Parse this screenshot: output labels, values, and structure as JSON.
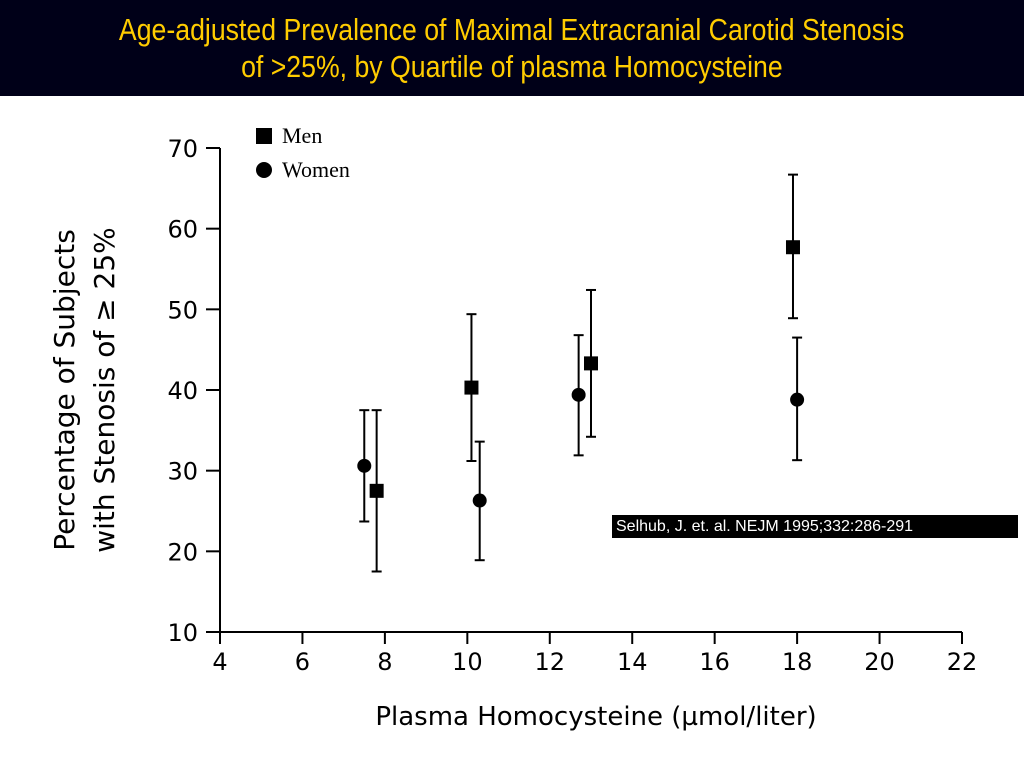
{
  "title": {
    "line1": "Age-adjusted Prevalence of Maximal Extracranial Carotid Stenosis",
    "line2": "of >25%, by Quartile of plasma Homocysteine"
  },
  "citation": "Selhub, J. et. al. NEJM 1995;332:286-291",
  "colors": {
    "title_bg": "#000018",
    "title_text": "#ffcc00",
    "ink": "#000000"
  },
  "chart_data": {
    "type": "scatter",
    "xlabel": "Plasma Homocysteine (µmol/liter)",
    "ylabel_line1": "Percentage of Subjects",
    "ylabel_line2": "with Stenosis of ≥ 25%",
    "xlim": [
      4,
      22
    ],
    "ylim": [
      10,
      70
    ],
    "x_ticks": [
      "4",
      "6",
      "8",
      "10",
      "12",
      "14",
      "16",
      "18",
      "20",
      "22"
    ],
    "y_ticks": [
      "10",
      "20",
      "30",
      "40",
      "50",
      "60",
      "70"
    ],
    "legend_position": "top-left",
    "series": [
      {
        "name": "Men",
        "marker": "square",
        "points": [
          {
            "x": 7.8,
            "y": 27.5,
            "low": 17.5,
            "high": 37.5
          },
          {
            "x": 10.1,
            "y": 40.3,
            "low": 31.2,
            "high": 49.4
          },
          {
            "x": 13.0,
            "y": 43.3,
            "low": 34.2,
            "high": 52.4
          },
          {
            "x": 17.9,
            "y": 57.7,
            "low": 48.9,
            "high": 66.7
          }
        ]
      },
      {
        "name": "Women",
        "marker": "circle",
        "points": [
          {
            "x": 7.5,
            "y": 30.6,
            "low": 23.7,
            "high": 37.5
          },
          {
            "x": 10.3,
            "y": 26.3,
            "low": 18.9,
            "high": 33.6
          },
          {
            "x": 12.7,
            "y": 39.4,
            "low": 31.9,
            "high": 46.8
          },
          {
            "x": 18.0,
            "y": 38.8,
            "low": 31.3,
            "high": 46.5
          }
        ]
      }
    ]
  }
}
